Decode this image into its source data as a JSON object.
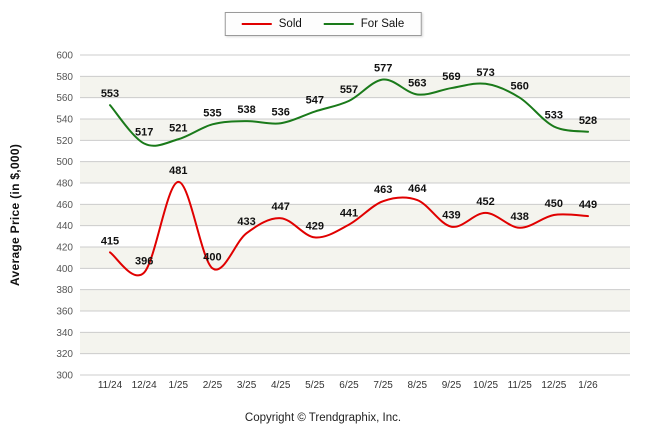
{
  "legend": {
    "items": [
      {
        "label": "Sold",
        "color": "#e00000"
      },
      {
        "label": "For Sale",
        "color": "#1a7a1a"
      }
    ]
  },
  "footer": {
    "copyright": "Copyright © Trendgraphix, Inc."
  },
  "chart_data": {
    "type": "line",
    "title": "",
    "xlabel": "",
    "ylabel": "Average Price (in $,000)",
    "ylim": [
      300,
      600
    ],
    "ytick_step": 20,
    "grid": true,
    "legend_position": "top",
    "categories": [
      "11/24",
      "12/24",
      "1/25",
      "2/25",
      "3/25",
      "4/25",
      "5/25",
      "6/25",
      "7/25",
      "8/25",
      "9/25",
      "10/25",
      "11/25",
      "12/25",
      "1/26"
    ],
    "series": [
      {
        "name": "Sold",
        "color": "#e00000",
        "values": [
          415,
          396,
          481,
          400,
          433,
          447,
          429,
          441,
          463,
          464,
          439,
          452,
          438,
          450,
          449
        ]
      },
      {
        "name": "For Sale",
        "color": "#1a7a1a",
        "values": [
          553,
          517,
          521,
          535,
          538,
          536,
          547,
          557,
          577,
          563,
          569,
          573,
          560,
          533,
          528
        ]
      }
    ]
  }
}
